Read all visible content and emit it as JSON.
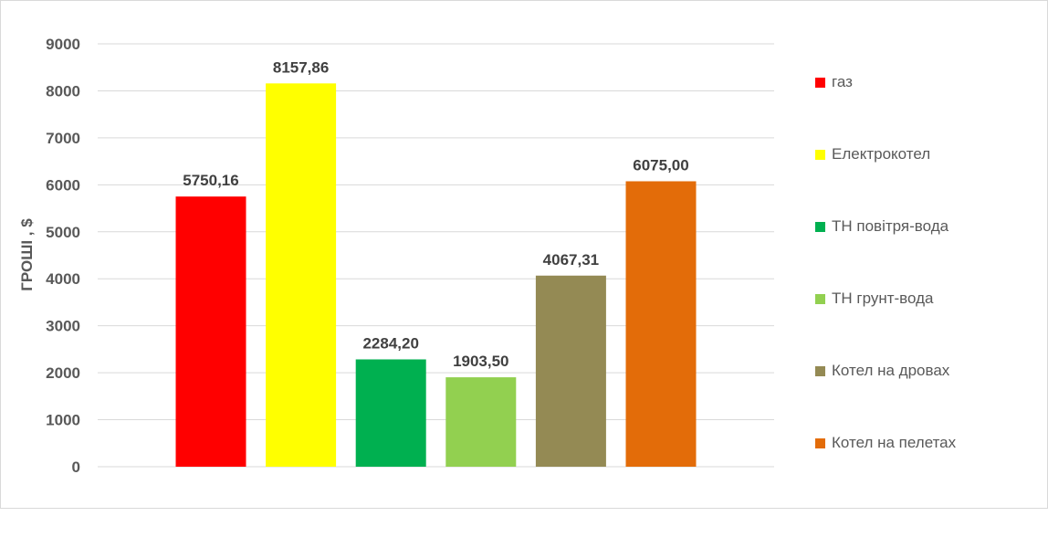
{
  "chart_data": {
    "type": "bar",
    "title": "",
    "xlabel": "",
    "ylabel": "ГРОШІ , $",
    "ylim": [
      0,
      9000
    ],
    "yticks": [
      0,
      1000,
      2000,
      3000,
      4000,
      5000,
      6000,
      7000,
      8000,
      9000
    ],
    "grid": true,
    "legend_position": "right",
    "categories": [
      "газ",
      "Електрокотел",
      "ТН повітря-вода",
      "ТН грунт-вода",
      "Котел на дровах",
      "Котел на пелетах"
    ],
    "values": [
      5750.16,
      8157.86,
      2284.2,
      1903.5,
      4067.31,
      6075.0
    ],
    "data_labels": [
      "5750,16",
      "8157,86",
      "2284,20",
      "1903,50",
      "4067,31",
      "6075,00"
    ],
    "colors": [
      "#ff0000",
      "#ffff00",
      "#00b050",
      "#92d050",
      "#948a54",
      "#e36c09"
    ]
  }
}
